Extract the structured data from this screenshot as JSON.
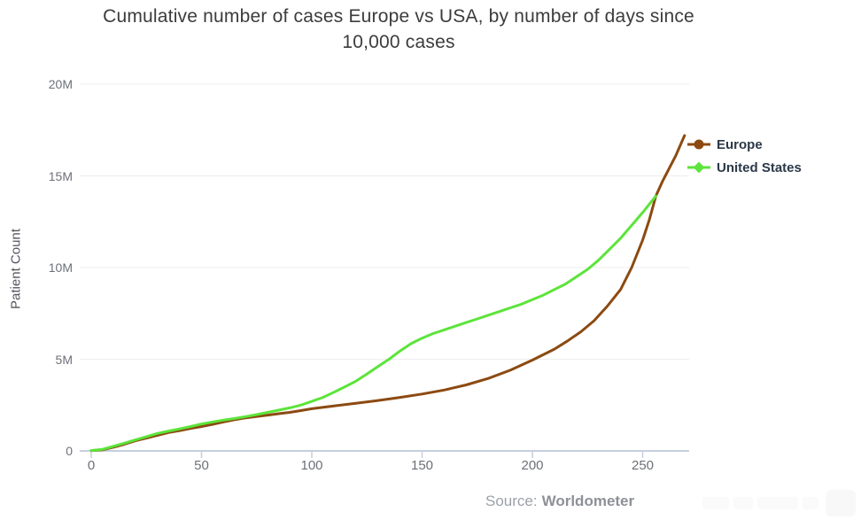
{
  "header": {
    "title_line1": "Cumulative number of cases Europe vs USA, by number of days since",
    "title_line2": "10,000 cases"
  },
  "chart_data": {
    "type": "line",
    "title": "Cumulative number of cases Europe vs USA, by number of days since 10,000 cases",
    "ylabel": "Patient Count",
    "xlabel": "",
    "grid": "horizontal-only",
    "legend_position": "right-top",
    "x_axis": {
      "ticks": [
        0,
        50,
        100,
        150,
        200,
        250
      ],
      "min": 0,
      "max": 271
    },
    "y_axis": {
      "label": "Patient Count",
      "ticks": [
        {
          "value": 0,
          "label": "0"
        },
        {
          "value": 5000000,
          "label": "5M"
        },
        {
          "value": 10000000,
          "label": "10M"
        },
        {
          "value": 15000000,
          "label": "15M"
        },
        {
          "value": 20000000,
          "label": "20M"
        }
      ],
      "min": 0,
      "max": 20000000
    },
    "series": [
      {
        "name": "Europe",
        "color": "#8c4a11",
        "marker": "circle",
        "points_day_vs_million_cases": [
          [
            0,
            0.02
          ],
          [
            5,
            0.06
          ],
          [
            10,
            0.2
          ],
          [
            15,
            0.36
          ],
          [
            20,
            0.55
          ],
          [
            25,
            0.7
          ],
          [
            30,
            0.85
          ],
          [
            35,
            1.0
          ],
          [
            40,
            1.1
          ],
          [
            45,
            1.22
          ],
          [
            50,
            1.33
          ],
          [
            55,
            1.45
          ],
          [
            60,
            1.58
          ],
          [
            65,
            1.7
          ],
          [
            70,
            1.8
          ],
          [
            75,
            1.88
          ],
          [
            80,
            1.95
          ],
          [
            85,
            2.03
          ],
          [
            90,
            2.1
          ],
          [
            95,
            2.2
          ],
          [
            100,
            2.3
          ],
          [
            110,
            2.45
          ],
          [
            120,
            2.6
          ],
          [
            130,
            2.75
          ],
          [
            140,
            2.92
          ],
          [
            150,
            3.1
          ],
          [
            160,
            3.32
          ],
          [
            170,
            3.6
          ],
          [
            180,
            3.95
          ],
          [
            190,
            4.4
          ],
          [
            200,
            4.95
          ],
          [
            210,
            5.55
          ],
          [
            216,
            6.0
          ],
          [
            222,
            6.5
          ],
          [
            228,
            7.1
          ],
          [
            234,
            7.9
          ],
          [
            240,
            8.8
          ],
          [
            245,
            10.0
          ],
          [
            250,
            11.5
          ],
          [
            253,
            12.6
          ],
          [
            256,
            13.9
          ],
          [
            259,
            14.7
          ],
          [
            262,
            15.4
          ],
          [
            265,
            16.1
          ],
          [
            269,
            17.2
          ]
        ]
      },
      {
        "name": "United States",
        "color": "#5ce43a",
        "marker": "diamond",
        "points_day_vs_million_cases": [
          [
            0,
            0.02
          ],
          [
            5,
            0.08
          ],
          [
            10,
            0.25
          ],
          [
            15,
            0.42
          ],
          [
            20,
            0.6
          ],
          [
            25,
            0.78
          ],
          [
            30,
            0.95
          ],
          [
            35,
            1.08
          ],
          [
            40,
            1.2
          ],
          [
            45,
            1.33
          ],
          [
            50,
            1.47
          ],
          [
            55,
            1.58
          ],
          [
            60,
            1.68
          ],
          [
            65,
            1.77
          ],
          [
            70,
            1.87
          ],
          [
            75,
            1.98
          ],
          [
            80,
            2.1
          ],
          [
            85,
            2.22
          ],
          [
            90,
            2.35
          ],
          [
            95,
            2.5
          ],
          [
            100,
            2.7
          ],
          [
            105,
            2.92
          ],
          [
            110,
            3.2
          ],
          [
            115,
            3.5
          ],
          [
            120,
            3.8
          ],
          [
            125,
            4.2
          ],
          [
            130,
            4.6
          ],
          [
            135,
            5.0
          ],
          [
            140,
            5.45
          ],
          [
            145,
            5.85
          ],
          [
            150,
            6.15
          ],
          [
            155,
            6.4
          ],
          [
            160,
            6.6
          ],
          [
            165,
            6.8
          ],
          [
            170,
            7.0
          ],
          [
            175,
            7.2
          ],
          [
            180,
            7.4
          ],
          [
            185,
            7.6
          ],
          [
            190,
            7.8
          ],
          [
            195,
            8.0
          ],
          [
            200,
            8.25
          ],
          [
            205,
            8.5
          ],
          [
            210,
            8.8
          ],
          [
            215,
            9.1
          ],
          [
            220,
            9.5
          ],
          [
            225,
            9.9
          ],
          [
            230,
            10.4
          ],
          [
            235,
            11.0
          ],
          [
            240,
            11.6
          ],
          [
            245,
            12.3
          ],
          [
            250,
            13.0
          ],
          [
            253,
            13.45
          ],
          [
            256,
            13.9
          ]
        ]
      }
    ],
    "source": {
      "prefix": "Source:",
      "name": "Worldometer"
    }
  },
  "colors": {
    "axis_line": "#c6cede",
    "gridline": "#ededed",
    "tick_text": "#6d7078",
    "title_text": "#3c3c3c",
    "legend_text": "#2b3848"
  }
}
